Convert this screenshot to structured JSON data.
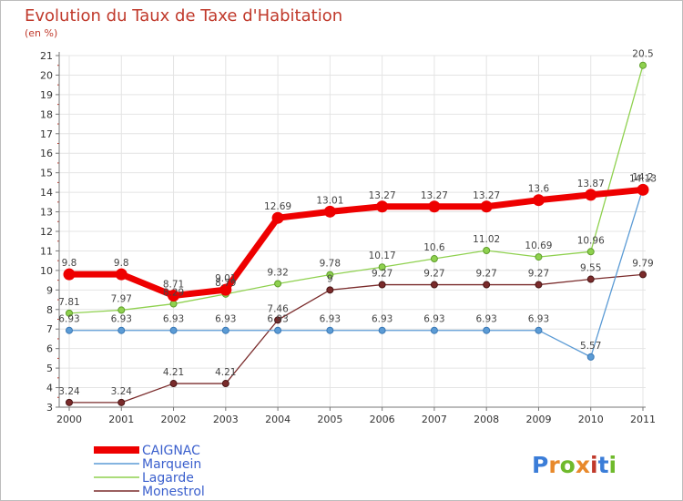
{
  "header": {
    "title": "Evolution du Taux de Taxe d'Habitation",
    "subtitle": "(en %)"
  },
  "logo": {
    "text": "Proxiti",
    "letter_colors": [
      "#3b7dd8",
      "#e8892b",
      "#6fba2c",
      "#e8892b",
      "#c0392b",
      "#3b7dd8",
      "#6fba2c"
    ]
  },
  "chart_data": {
    "type": "line",
    "title": "Evolution du Taux de Taxe d'Habitation",
    "subtitle": "(en %)",
    "x": [
      "2000",
      "2001",
      "2002",
      "2003",
      "2004",
      "2005",
      "2006",
      "2007",
      "2008",
      "2009",
      "2010",
      "2011"
    ],
    "ylim": [
      3,
      21
    ],
    "yticks": [
      "3",
      "4",
      "5",
      "6",
      "7",
      "8",
      "9",
      "10",
      "11",
      "12",
      "13",
      "14",
      "15",
      "16",
      "17",
      "18",
      "19",
      "20",
      "21"
    ],
    "grid": true,
    "legend_position": "bottom-left",
    "series": [
      {
        "name": "CAIGNAC",
        "color": "#ee0000",
        "values": [
          9.8,
          9.8,
          8.71,
          9.01,
          12.69,
          13.01,
          13.27,
          13.27,
          13.27,
          13.6,
          13.87,
          14.13
        ],
        "labels": [
          "9.8",
          "9.8",
          "8.71",
          "9.01",
          "12.69",
          "13.01",
          "13.27",
          "13.27",
          "13.27",
          "13.6",
          "13.87",
          "14.13"
        ]
      },
      {
        "name": "Marquein",
        "color": "#5b9bd5",
        "values": [
          6.93,
          6.93,
          6.93,
          6.93,
          6.93,
          6.93,
          6.93,
          6.93,
          6.93,
          6.93,
          5.57,
          14.2
        ],
        "labels": [
          "6.93",
          "6.93",
          "6.93",
          "6.93",
          "6.93",
          "6.93",
          "6.93",
          "6.93",
          "6.93",
          "6.93",
          "5.57",
          "14.2"
        ]
      },
      {
        "name": "Lagarde",
        "color": "#8fd14f",
        "values": [
          7.81,
          7.97,
          8.29,
          8.79,
          9.32,
          9.78,
          10.17,
          10.6,
          11.02,
          10.69,
          10.96,
          20.5
        ],
        "labels": [
          "7.81",
          "7.97",
          "8.29",
          "8.79",
          "9.32",
          "9.78",
          "10.17",
          "10.6",
          "11.02",
          "10.69",
          "10.96",
          "20.5"
        ]
      },
      {
        "name": "Monestrol",
        "color": "#7a2b2b",
        "values": [
          3.24,
          3.24,
          4.21,
          4.21,
          7.46,
          9,
          9.27,
          9.27,
          9.27,
          9.27,
          9.55,
          9.79
        ],
        "labels": [
          "3.24",
          "3.24",
          "4.21",
          "4.21",
          "7.46",
          "9",
          "9.27",
          "9.27",
          "9.27",
          "9.27",
          "9.55",
          "9.79"
        ]
      }
    ]
  }
}
